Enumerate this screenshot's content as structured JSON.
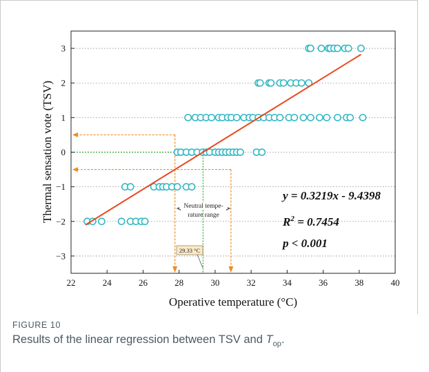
{
  "figure": {
    "label": "FIGURE 10",
    "caption_text": "Results of the linear regression between TSV and ",
    "caption_var": "T",
    "caption_sub": "op",
    "caption_end": "."
  },
  "chart_data": {
    "type": "scatter",
    "xlabel": "Operative temperature (°C)",
    "ylabel": "Thermal sensation vote (TSV)",
    "xlim": [
      22,
      40
    ],
    "ylim": [
      -3.5,
      3.5
    ],
    "xticks": [
      22,
      24,
      26,
      28,
      30,
      32,
      34,
      36,
      38,
      40
    ],
    "yticks": [
      -3,
      -2,
      -1,
      0,
      1,
      2,
      3
    ],
    "grid": "horizontal dotted",
    "colors": {
      "points": "#35b8c5",
      "fit": "#e8481f",
      "guide_orange": "#f08a1e",
      "guide_green": "#2aa52a"
    },
    "points": [
      {
        "tsv": 3,
        "x": [
          35.2,
          35.3,
          35.9,
          36.3,
          36.4,
          36.6,
          36.8,
          37.2,
          37.4,
          38.1
        ]
      },
      {
        "tsv": 2,
        "x": [
          32.4,
          32.5,
          33.0,
          33.1,
          33.6,
          33.8,
          34.2,
          34.5,
          34.8,
          35.2
        ]
      },
      {
        "tsv": 1,
        "x": [
          28.5,
          28.9,
          29.2,
          29.5,
          29.8,
          30.2,
          30.4,
          30.7,
          30.9,
          31.2,
          31.6,
          31.9,
          32.1,
          32.4,
          32.7,
          33.0,
          33.3,
          33.6,
          34.1,
          34.4,
          34.9,
          35.3,
          35.8,
          36.2,
          36.8,
          37.3,
          37.5,
          38.2
        ]
      },
      {
        "tsv": 0,
        "x": [
          27.9,
          28.1,
          28.4,
          28.7,
          29.0,
          29.3,
          29.5,
          29.7,
          30.0,
          30.2,
          30.4,
          30.6,
          30.8,
          31.0,
          31.2,
          31.4,
          32.3,
          32.6
        ]
      },
      {
        "tsv": -1,
        "x": [
          25.0,
          25.3,
          26.6,
          26.9,
          27.1,
          27.3,
          27.6,
          27.9,
          28.4,
          28.7
        ]
      },
      {
        "tsv": -2,
        "x": [
          22.9,
          23.2,
          23.7,
          24.8,
          25.3,
          25.6,
          25.9,
          26.1
        ]
      }
    ],
    "fit": {
      "slope": 0.3219,
      "intercept": -9.4398,
      "x_range": [
        22.8,
        38.1
      ]
    },
    "equation": "y = 0.3219x - 9.4398",
    "r_squared": "R",
    "r_squared_sup": "2",
    "r_squared_value": " = 0.7454",
    "p_value": "p < 0.001",
    "guides": {
      "orange_tsv": [
        0.5,
        -0.5
      ],
      "orange_x": [
        27.77,
        30.88
      ],
      "green_tsv": 0,
      "green_x": 29.33
    },
    "neutral_label_line1": "Neutral tempe-",
    "neutral_label_line2": "rature range",
    "neutral_temp_label": "29.33 °C"
  }
}
